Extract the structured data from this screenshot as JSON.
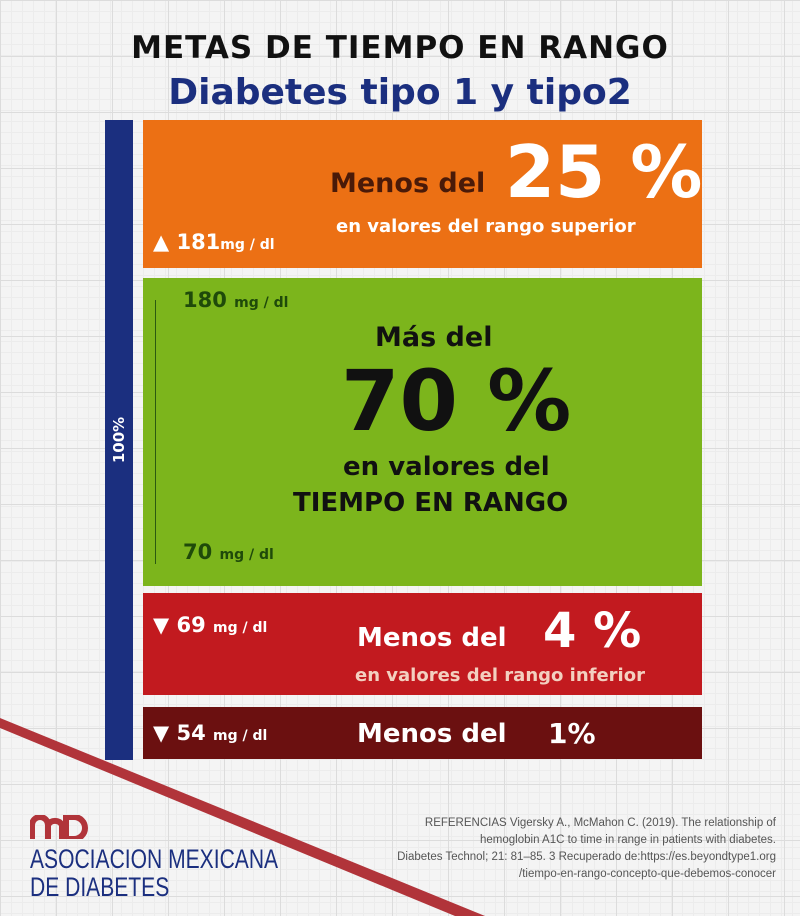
{
  "title": "METAS DE TIEMPO EN RANGO",
  "subtitle": "Diabetes tipo 1 y tipo2",
  "side_bar_label": "100%",
  "high": {
    "threshold": "▲ 181",
    "unit": "mg / dl",
    "prefix": "Menos del",
    "value": "25 %",
    "desc": "en valores del rango superior",
    "color": "#ec7014"
  },
  "range": {
    "top": "180",
    "bottom": "70",
    "unit": "mg / dl",
    "prefix": "Más del",
    "value": "70 %",
    "desc1": "en valores del",
    "desc2": "TIEMPO EN RANGO",
    "color": "#7cb51c"
  },
  "low": {
    "threshold": "▼ 69",
    "unit": "mg / dl",
    "prefix": "Menos del",
    "value": "4 %",
    "desc": "en valores del rango inferior",
    "color": "#c21a1f"
  },
  "very_low": {
    "threshold": "▼ 54",
    "unit": "mg / dl",
    "prefix": "Menos del",
    "value": "1%",
    "color": "#6b1010"
  },
  "logo": {
    "text1": "ASOCIACION MEXICANA",
    "text2": "DE DIABETES",
    "mark": "amd"
  },
  "references": [
    "REFERENCIAS Vigersky A., McMahon C. (2019). The relationship of",
    "hemoglobin A1C to time in range in patients with diabetes.",
    "Diabetes Technol; 21: 81–85. 3 Recuperado de:https://es.beyondtype1.org",
    "/tiempo-en-rango-concepto-que-debemos-conocer"
  ]
}
